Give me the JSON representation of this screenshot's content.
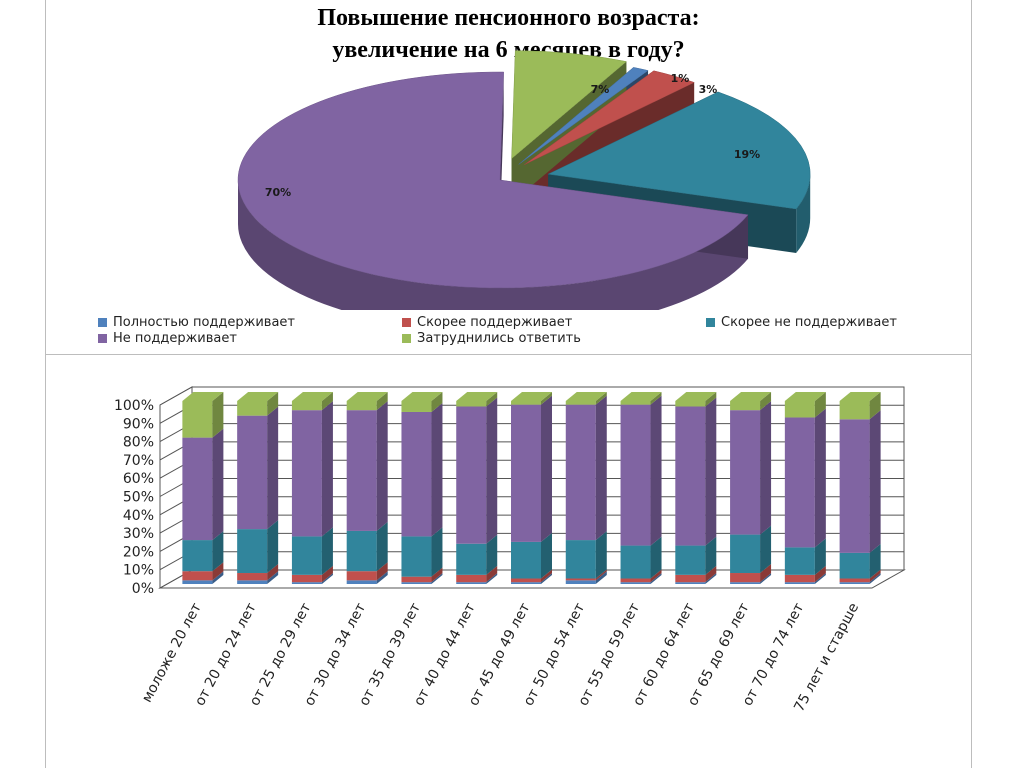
{
  "title": {
    "line1": "Повышение пенсионного возраста:",
    "line2": "увеличение на 6 месяцев в году?"
  },
  "legend": [
    {
      "label": "Полностью поддерживает",
      "color": "#4f81bd"
    },
    {
      "label": "Скорее поддерживает",
      "color": "#c0504d"
    },
    {
      "label": "Скорее не поддерживает",
      "color": "#31859c"
    },
    {
      "label": "Не поддерживает",
      "color": "#8064a2"
    },
    {
      "label": "Затруднились ответить",
      "color": "#9bbb59"
    }
  ],
  "chart_data": [
    {
      "type": "pie",
      "categories": [
        "Полностью поддерживает",
        "Скорее поддерживает",
        "Скорее не поддерживает",
        "Не поддерживает",
        "Затруднились ответить"
      ],
      "values": [
        1,
        3,
        19,
        70,
        7
      ],
      "labels": [
        "1%",
        "3%",
        "19%",
        "70%",
        "7%"
      ],
      "colors": [
        "#4f81bd",
        "#c0504d",
        "#31859c",
        "#8064a2",
        "#9bbb59"
      ],
      "style": "3d-exploded"
    },
    {
      "type": "bar",
      "stacked": "percent",
      "style": "3d",
      "categories": [
        "моложе 20 лет",
        "от 20 до 24 лет",
        "от 25 до 29 лет",
        "от 30 до 34 лет",
        "от 35 до 39 лет",
        "от 40 до 44 лет",
        "от 45 до 49 лет",
        "от 50 до 54 лет",
        "от 55 до 59 лет",
        "от 60 до 64 лет",
        "от 65 до 69 лет",
        "от 70 до 74 лет",
        "75 лет и старше"
      ],
      "y_ticks": [
        "0%",
        "10%",
        "20%",
        "30%",
        "40%",
        "50%",
        "60%",
        "70%",
        "80%",
        "90%",
        "100%"
      ],
      "ylim": [
        0,
        100
      ],
      "series": [
        {
          "name": "Полностью поддерживает",
          "color": "#4f81bd",
          "values": [
            2,
            2,
            1,
            2,
            1,
            1,
            1,
            2,
            1,
            1,
            1,
            1,
            1
          ]
        },
        {
          "name": "Скорее поддерживает",
          "color": "#c0504d",
          "values": [
            5,
            4,
            4,
            5,
            3,
            4,
            2,
            1,
            2,
            4,
            5,
            4,
            2
          ]
        },
        {
          "name": "Скорее не поддерживает",
          "color": "#31859c",
          "values": [
            17,
            24,
            21,
            22,
            22,
            17,
            20,
            21,
            18,
            16,
            21,
            15,
            14
          ]
        },
        {
          "name": "Не поддерживает",
          "color": "#8064a2",
          "values": [
            56,
            62,
            69,
            66,
            68,
            75,
            75,
            74,
            77,
            76,
            68,
            71,
            73
          ]
        },
        {
          "name": "Затруднились ответить",
          "color": "#9bbb59",
          "values": [
            20,
            8,
            5,
            5,
            6,
            3,
            2,
            2,
            2,
            3,
            5,
            9,
            10
          ]
        }
      ]
    }
  ]
}
